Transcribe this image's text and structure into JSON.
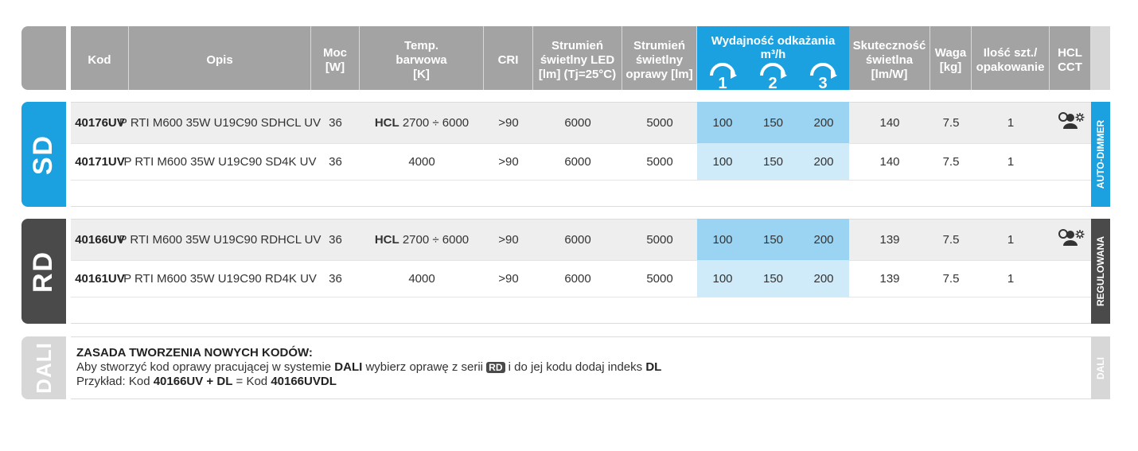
{
  "header": {
    "kod": "Kod",
    "opis": "Opis",
    "moc": "Moc\n[W]",
    "temp": "Temp.\nbarwowa\n[K]",
    "cri": "CRI",
    "strumien_led": "Strumień\nświetlny LED\n[lm] (Tj=25°C)",
    "strumien_oprawy": "Strumień\nświetlny\noprawy [lm]",
    "wydajnosc": "Wydajność odkażania m³/h",
    "levels": [
      "1",
      "2",
      "3"
    ],
    "skutecznosc": "Skuteczność\nświetlna\n[lm/W]",
    "waga": "Waga\n[kg]",
    "ilosc": "Ilość szt./\nopakowanie",
    "hcl": "HCL\nCCT"
  },
  "sections": [
    {
      "logo": "SD",
      "color": "#1ba1df",
      "side_label": "AUTO-DIMMER",
      "rows": [
        {
          "kod": "40176UV",
          "opis": "P RTI M600 35W U19C90 SDHCL UV",
          "moc": "36",
          "temp_bold": "HCL",
          "temp": "2700 ÷ 6000",
          "cri": ">90",
          "led": "6000",
          "oprawy": "5000",
          "w1": "100",
          "w2": "150",
          "w3": "200",
          "skut": "140",
          "waga": "7.5",
          "ilosc": "1",
          "hcl_icon": "hcl-cct-icon"
        },
        {
          "kod": "40171UV",
          "opis": "P RTI M600 35W U19C90 SD4K UV",
          "moc": "36",
          "temp_bold": "",
          "temp": "4000",
          "cri": ">90",
          "led": "6000",
          "oprawy": "5000",
          "w1": "100",
          "w2": "150",
          "w3": "200",
          "skut": "140",
          "waga": "7.5",
          "ilosc": "1",
          "hcl_icon": ""
        }
      ]
    },
    {
      "logo": "RD",
      "color": "#4a4a4a",
      "side_label": "REGULOWANA",
      "rows": [
        {
          "kod": "40166UV",
          "opis": "P RTI M600 35W U19C90 RDHCL UV",
          "moc": "36",
          "temp_bold": "HCL",
          "temp": "2700 ÷ 6000",
          "cri": ">90",
          "led": "6000",
          "oprawy": "5000",
          "w1": "100",
          "w2": "150",
          "w3": "200",
          "skut": "139",
          "waga": "7.5",
          "ilosc": "1",
          "hcl_icon": "hcl-cct-icon"
        },
        {
          "kod": "40161UV",
          "opis": "P RTI M600 35W U19C90 RD4K UV",
          "moc": "36",
          "temp_bold": "",
          "temp": "4000",
          "cri": ">90",
          "led": "6000",
          "oprawy": "5000",
          "w1": "100",
          "w2": "150",
          "w3": "200",
          "skut": "139",
          "waga": "7.5",
          "ilosc": "1",
          "hcl_icon": ""
        }
      ]
    }
  ],
  "dali": {
    "logo": "DALI",
    "side_label": "DALI",
    "title": "ZASADA TWORZENIA NOWYCH KODÓW:",
    "line2_a": "Aby stworzyć kod oprawy pracującej w systemie ",
    "line2_b": "DALI",
    "line2_c": " wybierz oprawę z serii ",
    "line2_logo": "RD",
    "line2_d": " i do jej kodu dodaj indeks ",
    "line2_e": "DL",
    "line3_a": "Przykład: Kod ",
    "line3_b": "40166UV + DL",
    "line3_c": " = Kod ",
    "line3_d": "40166UVDL"
  },
  "colors": {
    "header_gray": "#a3a3a3",
    "sd_blue": "#1ba1df",
    "rd_dark": "#4a4a4a",
    "blue_light": "#cfeaf8",
    "blue_dark": "#9bd4f2",
    "dali_gray": "#d7d7d7"
  }
}
